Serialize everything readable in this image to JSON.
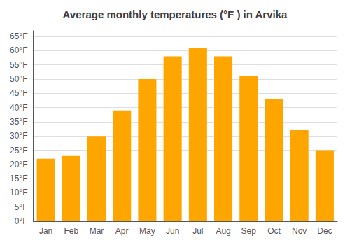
{
  "chart_data": {
    "type": "bar",
    "title": "Average monthly temperatures (°F ) in Arvika",
    "categories": [
      "Jan",
      "Feb",
      "Mar",
      "Apr",
      "May",
      "Jun",
      "Jul",
      "Aug",
      "Sep",
      "Oct",
      "Nov",
      "Dec"
    ],
    "values": [
      22,
      23,
      30,
      39,
      50,
      58,
      61,
      58,
      51,
      43,
      32,
      25
    ],
    "color": "#FFA500",
    "ylim": [
      0,
      67
    ],
    "yticks": [
      {
        "value": 0,
        "label": "0°F"
      },
      {
        "value": 5,
        "label": "5°F"
      },
      {
        "value": 10,
        "label": "10°F"
      },
      {
        "value": 15,
        "label": "15°F"
      },
      {
        "value": 20,
        "label": "20°F"
      },
      {
        "value": 25,
        "label": "25°F"
      },
      {
        "value": 30,
        "label": "30°F"
      },
      {
        "value": 35,
        "label": "35°F"
      },
      {
        "value": 40,
        "label": "40°F"
      },
      {
        "value": 45,
        "label": "45°F"
      },
      {
        "value": 50,
        "label": "50°F"
      },
      {
        "value": 55,
        "label": "55°F"
      },
      {
        "value": 60,
        "label": "60°F"
      },
      {
        "value": 65,
        "label": "65°F"
      }
    ],
    "grid": true
  }
}
